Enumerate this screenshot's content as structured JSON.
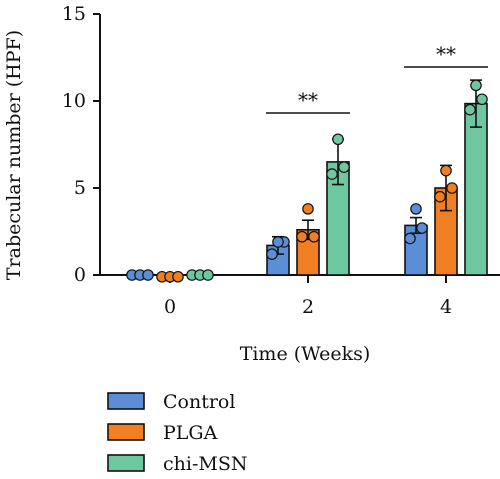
{
  "chart_data": {
    "type": "bar",
    "categories": [
      "0",
      "2",
      "4"
    ],
    "xlabel": "Time (Weeks)",
    "ylabel": "Trabecular number (HPF)",
    "ylim": [
      0,
      15
    ],
    "yticks": [
      "0",
      "5",
      "10",
      "15"
    ],
    "series": [
      {
        "name": "Control",
        "color": "#5b8ed6",
        "values": [
          0.0,
          1.7,
          2.85
        ],
        "errors": [
          0.0,
          0.5,
          0.45
        ],
        "points": [
          [
            0,
            0,
            0
          ],
          [
            1.2,
            1.9,
            1.9
          ],
          [
            2.1,
            2.7,
            3.8
          ]
        ]
      },
      {
        "name": "PLGA",
        "color": "#f07f24",
        "values": [
          -0.1,
          2.6,
          5.0
        ],
        "errors": [
          0.0,
          0.55,
          1.3
        ],
        "points": [
          [
            -0.1,
            -0.1,
            -0.1
          ],
          [
            2.2,
            2.2,
            3.8
          ],
          [
            4.5,
            5.0,
            6.0
          ]
        ]
      },
      {
        "name": "chi-MSN",
        "color": "#6fc7a0",
        "values": [
          0.0,
          6.5,
          9.85
        ],
        "errors": [
          0.0,
          1.3,
          1.35
        ],
        "points": [
          [
            0,
            0,
            0
          ],
          [
            5.8,
            6.2,
            7.8
          ],
          [
            9.5,
            10.1,
            10.9
          ]
        ]
      }
    ],
    "annotations": [
      {
        "text": "**",
        "category": "2"
      },
      {
        "text": "**",
        "category": "4"
      }
    ],
    "legend_position": "bottom-left",
    "grid": false
  }
}
